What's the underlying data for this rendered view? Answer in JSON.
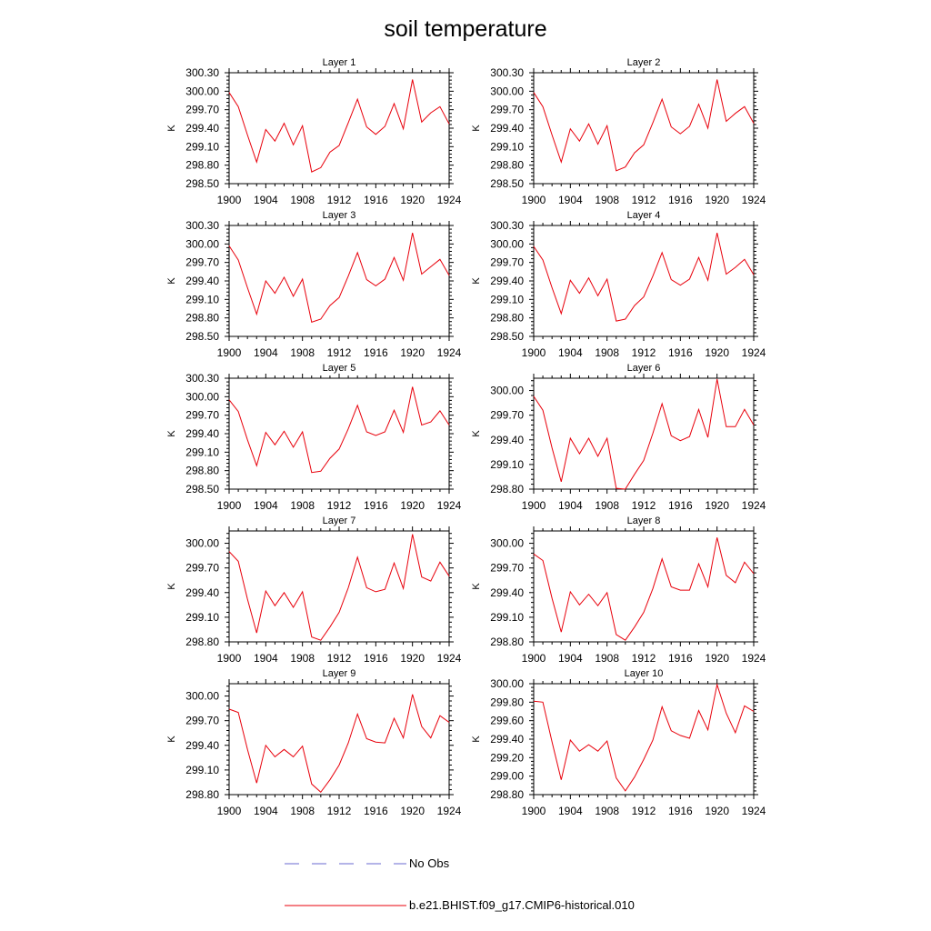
{
  "title": "soil temperature",
  "legend": [
    {
      "label": "No Obs",
      "color": "#6a6ad0",
      "style": "dashed"
    },
    {
      "label": "b.e21.BHIST.f09_g17.CMIP6-historical.010",
      "color": "#e8000b",
      "style": "solid"
    }
  ],
  "line_color": "#e8000b",
  "chart_data": [
    {
      "type": "line",
      "title": "Layer 1",
      "ylabel": "K",
      "xlim": [
        1900,
        1924
      ],
      "xticks": [
        "1900",
        "1904",
        "1908",
        "1912",
        "1916",
        "1920",
        "1924"
      ],
      "ylim": [
        298.5,
        300.3
      ],
      "yticks": [
        "298.50",
        "298.80",
        "299.10",
        "299.40",
        "299.70",
        "300.00",
        "300.30"
      ],
      "series": [
        {
          "x": [
            1900,
            1901,
            1902,
            1903,
            1904,
            1905,
            1906,
            1907,
            1908,
            1909,
            1910,
            1911,
            1912,
            1913,
            1914,
            1915,
            1916,
            1917,
            1918,
            1919,
            1920,
            1921,
            1922,
            1923,
            1924
          ],
          "values": [
            299.98,
            299.75,
            299.29,
            298.85,
            299.38,
            299.19,
            299.48,
            299.13,
            299.44,
            298.69,
            298.76,
            299.01,
            299.12,
            299.49,
            299.87,
            299.42,
            299.3,
            299.43,
            299.8,
            299.39,
            300.19,
            299.5,
            299.65,
            299.75,
            299.47
          ]
        }
      ]
    },
    {
      "type": "line",
      "title": "Layer 2",
      "ylabel": "K",
      "xlim": [
        1900,
        1924
      ],
      "xticks": [
        "1900",
        "1904",
        "1908",
        "1912",
        "1916",
        "1920",
        "1924"
      ],
      "ylim": [
        298.5,
        300.3
      ],
      "yticks": [
        "298.50",
        "298.80",
        "299.10",
        "299.40",
        "299.70",
        "300.00",
        "300.30"
      ],
      "series": [
        {
          "x": [
            1900,
            1901,
            1902,
            1903,
            1904,
            1905,
            1906,
            1907,
            1908,
            1909,
            1910,
            1911,
            1912,
            1913,
            1914,
            1915,
            1916,
            1917,
            1918,
            1919,
            1920,
            1921,
            1922,
            1923,
            1924
          ],
          "values": [
            299.98,
            299.75,
            299.29,
            298.85,
            299.39,
            299.19,
            299.47,
            299.14,
            299.44,
            298.71,
            298.77,
            299.0,
            299.13,
            299.49,
            299.87,
            299.42,
            299.31,
            299.43,
            299.79,
            299.4,
            300.19,
            299.51,
            299.64,
            299.75,
            299.48
          ]
        }
      ]
    },
    {
      "type": "line",
      "title": "Layer 3",
      "ylabel": "K",
      "xlim": [
        1900,
        1924
      ],
      "xticks": [
        "1900",
        "1904",
        "1908",
        "1912",
        "1916",
        "1920",
        "1924"
      ],
      "ylim": [
        298.5,
        300.3
      ],
      "yticks": [
        "298.50",
        "298.80",
        "299.10",
        "299.40",
        "299.70",
        "300.00",
        "300.30"
      ],
      "series": [
        {
          "x": [
            1900,
            1901,
            1902,
            1903,
            1904,
            1905,
            1906,
            1907,
            1908,
            1909,
            1910,
            1911,
            1912,
            1913,
            1914,
            1915,
            1916,
            1917,
            1918,
            1919,
            1920,
            1921,
            1922,
            1923,
            1924
          ],
          "values": [
            299.97,
            299.74,
            299.29,
            298.86,
            299.4,
            299.2,
            299.46,
            299.15,
            299.43,
            298.73,
            298.78,
            299.0,
            299.13,
            299.48,
            299.86,
            299.42,
            299.32,
            299.43,
            299.78,
            299.41,
            300.18,
            299.51,
            299.63,
            299.75,
            299.49
          ]
        }
      ]
    },
    {
      "type": "line",
      "title": "Layer 4",
      "ylabel": "K",
      "xlim": [
        1900,
        1924
      ],
      "xticks": [
        "1900",
        "1904",
        "1908",
        "1912",
        "1916",
        "1920",
        "1924"
      ],
      "ylim": [
        298.5,
        300.3
      ],
      "yticks": [
        "298.50",
        "298.80",
        "299.10",
        "299.40",
        "299.70",
        "300.00",
        "300.30"
      ],
      "series": [
        {
          "x": [
            1900,
            1901,
            1902,
            1903,
            1904,
            1905,
            1906,
            1907,
            1908,
            1909,
            1910,
            1911,
            1912,
            1913,
            1914,
            1915,
            1916,
            1917,
            1918,
            1919,
            1920,
            1921,
            1922,
            1923,
            1924
          ],
          "values": [
            299.96,
            299.74,
            299.29,
            298.87,
            299.41,
            299.2,
            299.45,
            299.16,
            299.43,
            298.75,
            298.78,
            299.0,
            299.14,
            299.48,
            299.86,
            299.42,
            299.33,
            299.43,
            299.78,
            299.41,
            300.18,
            299.51,
            299.62,
            299.75,
            299.5
          ]
        }
      ]
    },
    {
      "type": "line",
      "title": "Layer 5",
      "ylabel": "K",
      "xlim": [
        1900,
        1924
      ],
      "xticks": [
        "1900",
        "1904",
        "1908",
        "1912",
        "1916",
        "1920",
        "1924"
      ],
      "ylim": [
        298.5,
        300.3
      ],
      "yticks": [
        "298.50",
        "298.80",
        "299.10",
        "299.40",
        "299.70",
        "300.00",
        "300.30"
      ],
      "series": [
        {
          "x": [
            1900,
            1901,
            1902,
            1903,
            1904,
            1905,
            1906,
            1907,
            1908,
            1909,
            1910,
            1911,
            1912,
            1913,
            1914,
            1915,
            1916,
            1917,
            1918,
            1919,
            1920,
            1921,
            1922,
            1923,
            1924
          ],
          "values": [
            299.95,
            299.76,
            299.3,
            298.88,
            299.42,
            299.22,
            299.44,
            299.18,
            299.43,
            298.77,
            298.79,
            299.0,
            299.15,
            299.48,
            299.86,
            299.43,
            299.37,
            299.43,
            299.78,
            299.42,
            300.16,
            299.54,
            299.59,
            299.77,
            299.54
          ]
        }
      ]
    },
    {
      "type": "line",
      "title": "Layer 6",
      "ylabel": "K",
      "xlim": [
        1900,
        1924
      ],
      "xticks": [
        "1900",
        "1904",
        "1908",
        "1912",
        "1916",
        "1920",
        "1924"
      ],
      "ylim": [
        298.8,
        300.15
      ],
      "yticks": [
        "298.80",
        "299.10",
        "299.40",
        "299.70",
        "300.00"
      ],
      "series": [
        {
          "x": [
            1900,
            1901,
            1902,
            1903,
            1904,
            1905,
            1906,
            1907,
            1908,
            1909,
            1910,
            1911,
            1912,
            1913,
            1914,
            1915,
            1916,
            1917,
            1918,
            1919,
            1920,
            1921,
            1922,
            1923,
            1924
          ],
          "values": [
            299.93,
            299.76,
            299.3,
            298.89,
            299.42,
            299.23,
            299.42,
            299.2,
            299.42,
            298.81,
            298.8,
            298.98,
            299.15,
            299.48,
            299.84,
            299.45,
            299.39,
            299.44,
            299.77,
            299.43,
            300.14,
            299.56,
            299.56,
            299.77,
            299.58
          ]
        }
      ]
    },
    {
      "type": "line",
      "title": "Layer 7",
      "ylabel": "K",
      "xlim": [
        1900,
        1924
      ],
      "xticks": [
        "1900",
        "1904",
        "1908",
        "1912",
        "1916",
        "1920",
        "1924"
      ],
      "ylim": [
        298.8,
        300.15
      ],
      "yticks": [
        "298.80",
        "299.10",
        "299.40",
        "299.70",
        "300.00"
      ],
      "series": [
        {
          "x": [
            1900,
            1901,
            1902,
            1903,
            1904,
            1905,
            1906,
            1907,
            1908,
            1909,
            1910,
            1911,
            1912,
            1913,
            1914,
            1915,
            1916,
            1917,
            1918,
            1919,
            1920,
            1921,
            1922,
            1923,
            1924
          ],
          "values": [
            299.9,
            299.78,
            299.32,
            298.91,
            299.42,
            299.24,
            299.4,
            299.22,
            299.41,
            298.86,
            298.82,
            298.98,
            299.16,
            299.46,
            299.83,
            299.46,
            299.41,
            299.44,
            299.76,
            299.45,
            300.11,
            299.59,
            299.54,
            299.77,
            299.6
          ]
        }
      ]
    },
    {
      "type": "line",
      "title": "Layer 8",
      "ylabel": "K",
      "xlim": [
        1900,
        1924
      ],
      "xticks": [
        "1900",
        "1904",
        "1908",
        "1912",
        "1916",
        "1920",
        "1924"
      ],
      "ylim": [
        298.8,
        300.15
      ],
      "yticks": [
        "298.80",
        "299.10",
        "299.40",
        "299.70",
        "300.00"
      ],
      "series": [
        {
          "x": [
            1900,
            1901,
            1902,
            1903,
            1904,
            1905,
            1906,
            1907,
            1908,
            1909,
            1910,
            1911,
            1912,
            1913,
            1914,
            1915,
            1916,
            1917,
            1918,
            1919,
            1920,
            1921,
            1922,
            1923,
            1924
          ],
          "values": [
            299.87,
            299.79,
            299.33,
            298.92,
            299.41,
            299.25,
            299.38,
            299.24,
            299.4,
            298.89,
            298.82,
            298.98,
            299.16,
            299.45,
            299.81,
            299.47,
            299.43,
            299.43,
            299.75,
            299.47,
            300.07,
            299.61,
            299.52,
            299.77,
            299.63
          ]
        }
      ]
    },
    {
      "type": "line",
      "title": "Layer 9",
      "ylabel": "K",
      "xlim": [
        1900,
        1924
      ],
      "xticks": [
        "1900",
        "1904",
        "1908",
        "1912",
        "1916",
        "1920",
        "1924"
      ],
      "ylim": [
        298.8,
        300.15
      ],
      "yticks": [
        "298.80",
        "299.10",
        "299.40",
        "299.70",
        "300.00"
      ],
      "series": [
        {
          "x": [
            1900,
            1901,
            1902,
            1903,
            1904,
            1905,
            1906,
            1907,
            1908,
            1909,
            1910,
            1911,
            1912,
            1913,
            1914,
            1915,
            1916,
            1917,
            1918,
            1919,
            1920,
            1921,
            1922,
            1923,
            1924
          ],
          "values": [
            299.84,
            299.8,
            299.35,
            298.94,
            299.4,
            299.26,
            299.35,
            299.26,
            299.39,
            298.93,
            298.83,
            298.98,
            299.16,
            299.43,
            299.78,
            299.48,
            299.44,
            299.43,
            299.73,
            299.49,
            300.02,
            299.63,
            299.49,
            299.76,
            299.68
          ]
        }
      ]
    },
    {
      "type": "line",
      "title": "Layer 10",
      "ylabel": "K",
      "xlim": [
        1900,
        1924
      ],
      "xticks": [
        "1900",
        "1904",
        "1908",
        "1912",
        "1916",
        "1920",
        "1924"
      ],
      "ylim": [
        298.8,
        300.0
      ],
      "yticks": [
        "298.80",
        "299.00",
        "299.20",
        "299.40",
        "299.60",
        "299.80",
        "300.00"
      ],
      "series": [
        {
          "x": [
            1900,
            1901,
            1902,
            1903,
            1904,
            1905,
            1906,
            1907,
            1908,
            1909,
            1910,
            1911,
            1912,
            1913,
            1914,
            1915,
            1916,
            1917,
            1918,
            1919,
            1920,
            1921,
            1922,
            1923,
            1924
          ],
          "values": [
            299.81,
            299.8,
            299.37,
            298.96,
            299.39,
            299.27,
            299.34,
            299.27,
            299.38,
            298.98,
            298.84,
            298.99,
            299.18,
            299.39,
            299.75,
            299.49,
            299.44,
            299.41,
            299.71,
            299.5,
            299.99,
            299.68,
            299.47,
            299.76,
            299.7
          ]
        }
      ]
    }
  ]
}
